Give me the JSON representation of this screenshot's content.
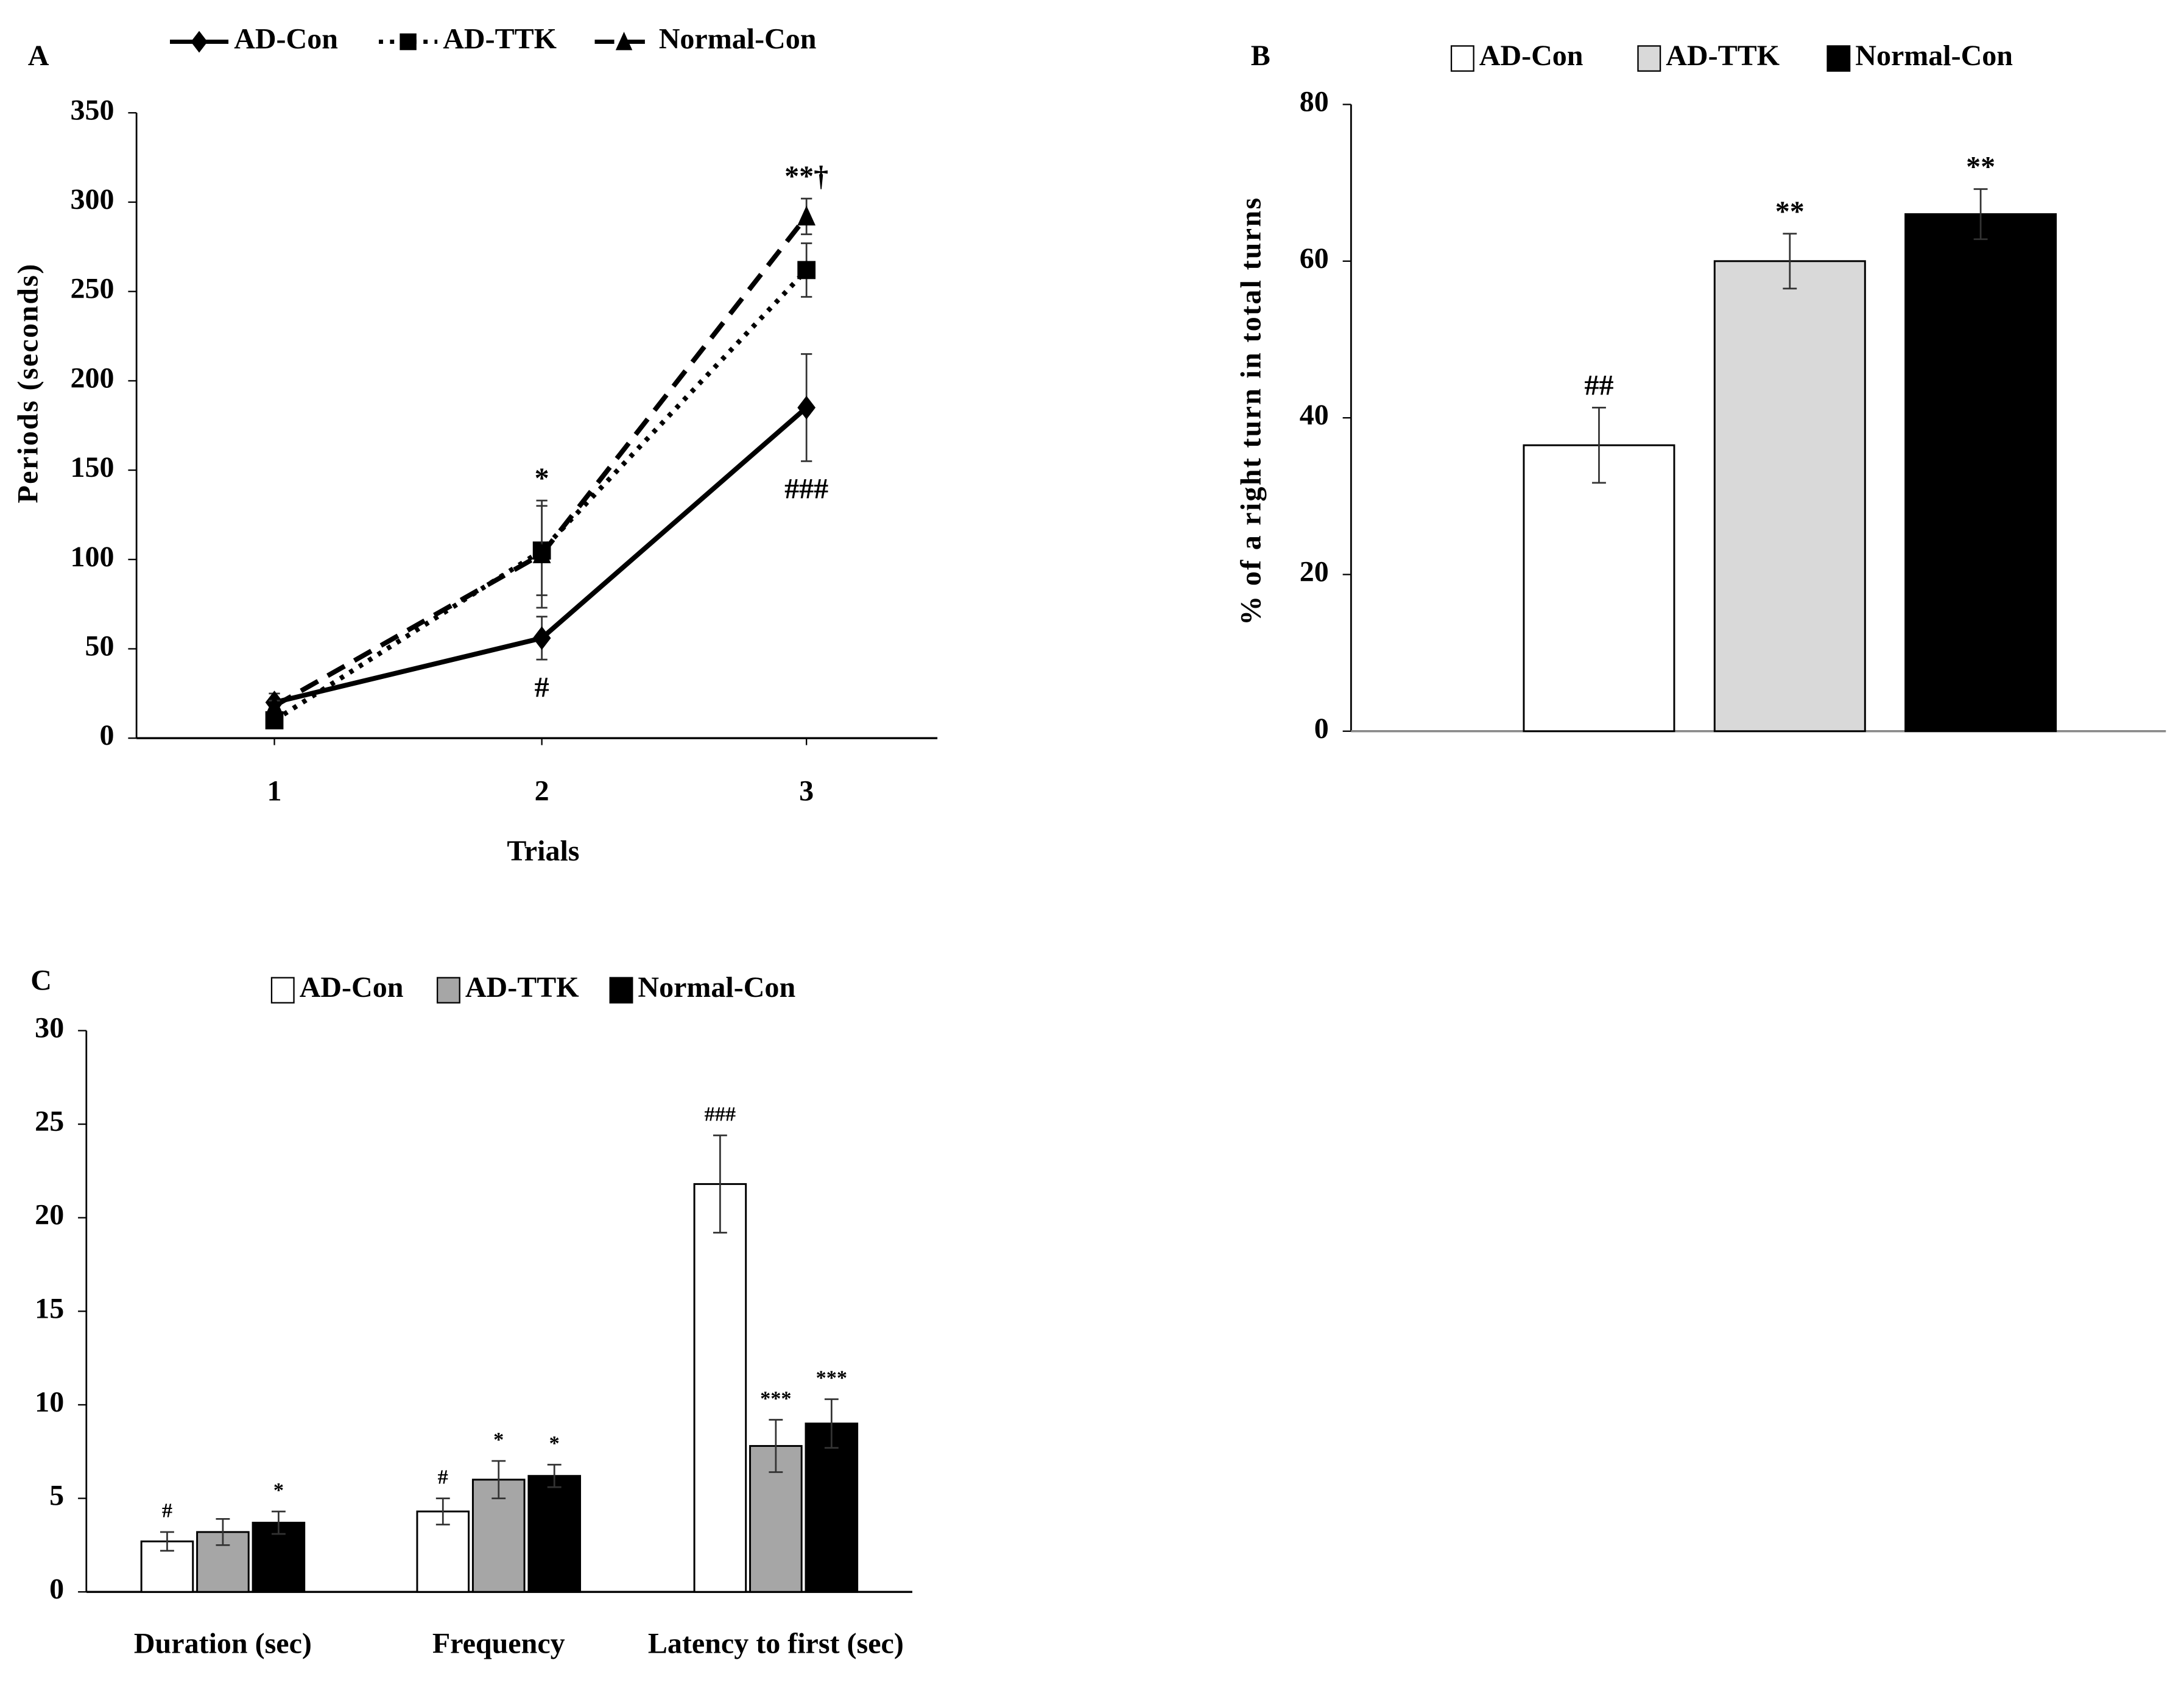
{
  "chart_data": [
    {
      "type": "line",
      "panel_label": "A",
      "x_label": "Trials",
      "y_label": "Periods (seconds)",
      "categories": [
        "1",
        "2",
        "3"
      ],
      "ylim": [
        0,
        350
      ],
      "yticks": [
        0,
        50,
        100,
        150,
        200,
        250,
        300,
        350
      ],
      "series": [
        {
          "name": "AD-Con",
          "color": "#000000",
          "line_style": "solid",
          "marker": "diamond",
          "values": [
            20,
            56,
            185
          ],
          "errors": [
            5,
            12,
            30
          ],
          "labels": [
            null,
            "#",
            "###"
          ]
        },
        {
          "name": "AD-TTK",
          "color": "#000000",
          "line_style": "dotted",
          "marker": "square",
          "values": [
            10,
            105,
            262
          ],
          "errors": [
            3,
            25,
            15
          ],
          "labels": [
            null,
            null,
            null
          ]
        },
        {
          "name": "Normal-Con",
          "color": "#000000",
          "line_style": "dashed",
          "marker": "triangle",
          "values": [
            18,
            103,
            292
          ],
          "errors": [
            3,
            30,
            10
          ],
          "labels": [
            null,
            "*",
            "**†"
          ]
        }
      ]
    },
    {
      "type": "bar",
      "panel_label": "B",
      "y_label": "% of a right turn in total turns",
      "ylim": [
        0,
        80
      ],
      "yticks": [
        0,
        20,
        40,
        60,
        80
      ],
      "series": [
        {
          "name": "AD-Con",
          "color": "#ffffff",
          "values": [
            36.5
          ],
          "errors": [
            4.8
          ],
          "labels": [
            "##"
          ]
        },
        {
          "name": "AD-TTK",
          "color": "#d9d9d9",
          "values": [
            60
          ],
          "errors": [
            3.5
          ],
          "labels": [
            "**"
          ]
        },
        {
          "name": "Normal-Con",
          "color": "#000000",
          "values": [
            66
          ],
          "errors": [
            3.2
          ],
          "labels": [
            "**"
          ]
        }
      ]
    },
    {
      "type": "bar",
      "panel_label": "C",
      "categories": [
        "Duration (sec)",
        "Frequency",
        "Latency to first (sec)"
      ],
      "ylim": [
        0,
        30
      ],
      "yticks": [
        0,
        5,
        10,
        15,
        20,
        25,
        30
      ],
      "series": [
        {
          "name": "AD-Con",
          "color": "#ffffff",
          "values": [
            2.7,
            4.3,
            21.8
          ],
          "errors": [
            0.5,
            0.7,
            2.6
          ],
          "labels": [
            "#",
            "#",
            "###"
          ]
        },
        {
          "name": "AD-TTK",
          "color": "#a6a6a6",
          "values": [
            3.2,
            6.0,
            7.8
          ],
          "errors": [
            0.7,
            1.0,
            1.4
          ],
          "labels": [
            null,
            "*",
            "***"
          ]
        },
        {
          "name": "Normal-Con",
          "color": "#000000",
          "values": [
            3.7,
            6.2,
            9.0
          ],
          "errors": [
            0.6,
            0.6,
            1.3
          ],
          "labels": [
            "*",
            "*",
            "***"
          ]
        }
      ]
    }
  ]
}
